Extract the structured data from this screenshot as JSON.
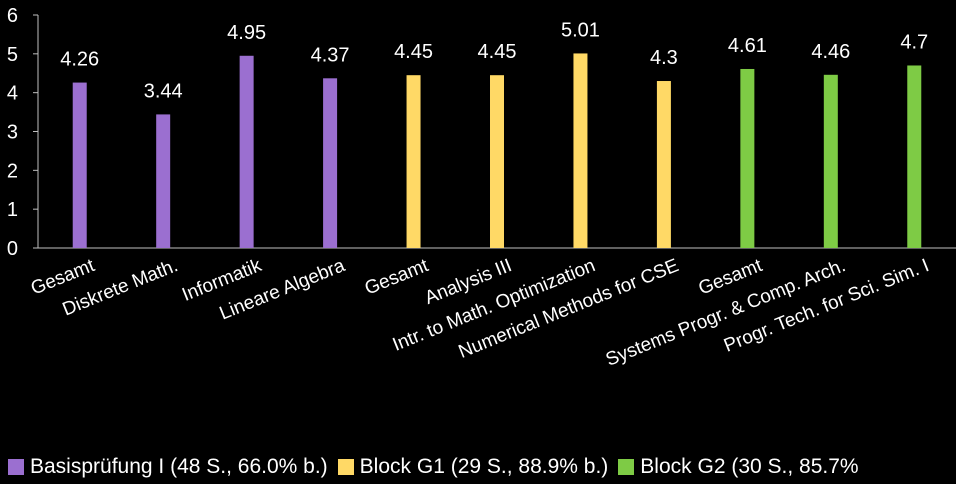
{
  "chart_data": {
    "type": "bar",
    "ylim": [
      0,
      6
    ],
    "yticks": [
      0,
      1,
      2,
      3,
      4,
      5,
      6
    ],
    "grid": false,
    "legend_position": "bottom",
    "categories": [
      "Gesamt",
      "Diskrete Math.",
      "Informatik",
      "Lineare Algebra",
      "Gesamt",
      "Analysis III",
      "Intr. to Math. Optimization",
      "Numerical Methods for CSE",
      "Gesamt",
      "Systems Progr. & Comp. Arch.",
      "Progr. Tech. for Sci. Sim. I"
    ],
    "values": [
      4.26,
      3.44,
      4.95,
      4.37,
      4.45,
      4.45,
      5.01,
      4.3,
      4.61,
      4.46,
      4.7
    ],
    "data_labels": [
      "4.26",
      "3.44",
      "4.95",
      "4.37",
      "4.45",
      "4.45",
      "5.01",
      "4.3",
      "4.61",
      "4.46",
      "4.7"
    ],
    "groups": [
      0,
      0,
      0,
      0,
      1,
      1,
      1,
      1,
      2,
      2,
      2
    ],
    "series": [
      {
        "name": "Basisprüfung I (48 S., 66.0% b.)",
        "color": "#9b6fd0"
      },
      {
        "name": "Block G1 (29 S., 88.9% b.)",
        "color": "#ffd966"
      },
      {
        "name": "Block G2 (30 S., 85.7%",
        "color": "#7ecb45"
      }
    ]
  }
}
